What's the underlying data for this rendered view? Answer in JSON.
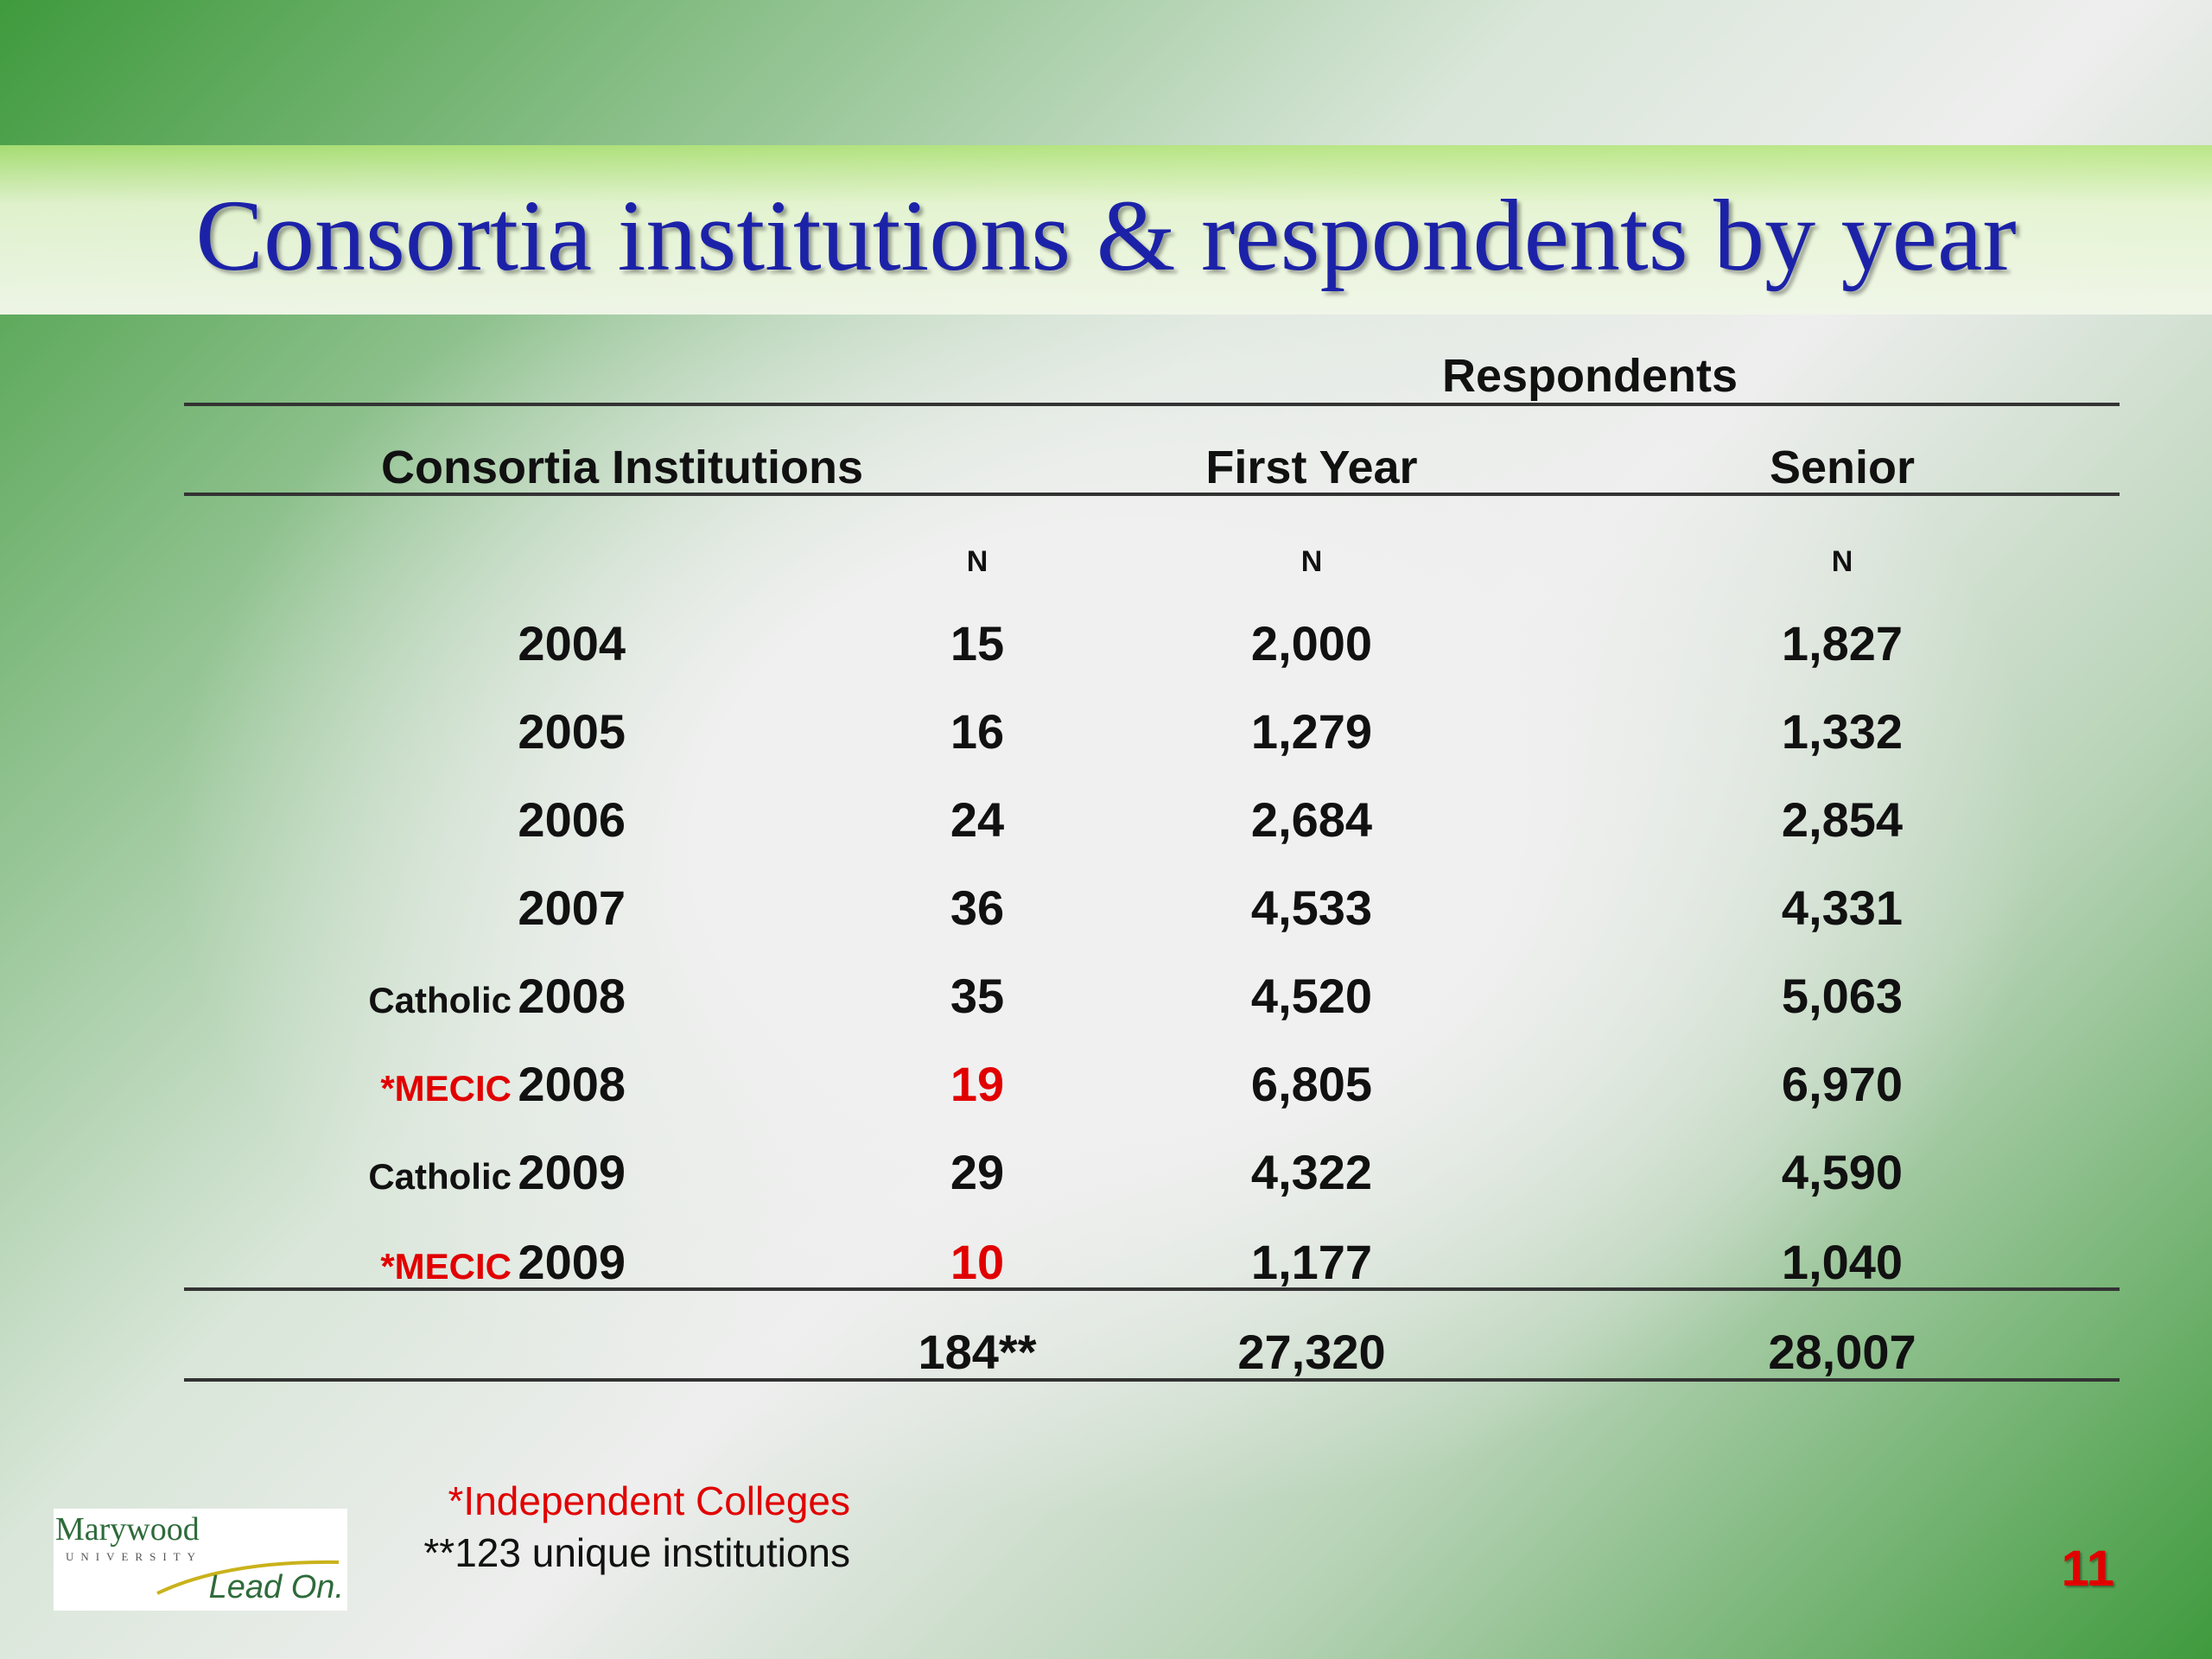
{
  "title": "Consortia institutions & respondents by year",
  "table": {
    "respondents_header": "Respondents",
    "col_institutions": "Consortia Institutions",
    "col_first_year": "First Year",
    "col_senior": "Senior",
    "n_label_inst": "N",
    "n_label_first": "N",
    "n_label_senior": "N",
    "rows": [
      {
        "label": "",
        "year": "2004",
        "n": "15",
        "first_year": "2,000",
        "senior": "1,827"
      },
      {
        "label": "",
        "year": "2005",
        "n": "16",
        "first_year": "1,279",
        "senior": "1,332"
      },
      {
        "label": "",
        "year": "2006",
        "n": "24",
        "first_year": "2,684",
        "senior": "2,854"
      },
      {
        "label": "",
        "year": "2007",
        "n": "36",
        "first_year": "4,533",
        "senior": "4,331"
      },
      {
        "label": "Catholic",
        "year": "2008",
        "n": "35",
        "first_year": "4,520",
        "senior": "5,063"
      },
      {
        "label": "*MECIC",
        "year": "2008",
        "n": "19",
        "first_year": "6,805",
        "senior": "6,970"
      },
      {
        "label": "Catholic",
        "year": "2009",
        "n": "29",
        "first_year": "4,322",
        "senior": "4,590"
      },
      {
        "label": "*MECIC",
        "year": "2009",
        "n": "10",
        "first_year": "1,177",
        "senior": "1,040"
      }
    ],
    "total_n": "184**",
    "total_first_year": "27,320",
    "total_senior": "28,007"
  },
  "footnotes": {
    "independent": "*Independent Colleges",
    "unique": "**123 unique institutions"
  },
  "logo": {
    "name": "Marywood",
    "sub": "UNIVERSITY",
    "tagline": "Lead On."
  },
  "page_number": "11",
  "colors": {
    "title": "#1c22a8",
    "highlight_red": "#e10000",
    "green": "#3f9a3d"
  }
}
